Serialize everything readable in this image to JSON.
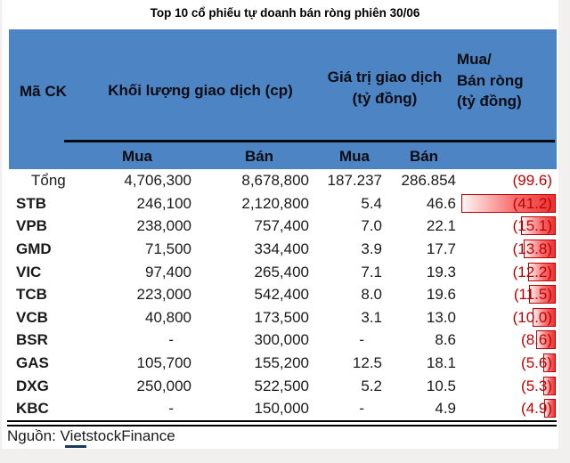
{
  "title": "Top 10 cổ phiếu tự doanh bán ròng phiên 30/06",
  "table": {
    "headers": {
      "ma_ck": "Mã CK",
      "khoi_luong": "Khối lượng giao dịch (cp)",
      "gia_tri": "Giá trị giao dịch\n(tỷ đồng)",
      "mua_ban_rong": "Mua/\nBán ròng\n(tỷ đồng)"
    },
    "sub_headers": [
      "Mua",
      "Bán",
      "Mua",
      "Bán"
    ]
  },
  "footer": {
    "source": "Nguồn: VietstockFinance"
  },
  "colors": {
    "header_bg": "#4d85c4",
    "negative_text": "#c00000",
    "bar_border": "#c00000",
    "bar_fill": "#e93232",
    "page_bg": "#f1f0ee",
    "text": "#1a1a1a"
  },
  "chart_data": {
    "type": "table",
    "title": "Top 10 cổ phiếu tự doanh bán ròng phiên 30/06",
    "columns": [
      "Mã CK",
      "Khối lượng giao dịch (cp) - Mua",
      "Khối lượng giao dịch (cp) - Bán",
      "Giá trị giao dịch (tỷ đồng) - Mua",
      "Giá trị giao dịch (tỷ đồng) - Bán",
      "Mua/Bán ròng (tỷ đồng)"
    ],
    "bar_scale_max": 41.2,
    "rows": [
      {
        "ma_ck": "Tổng",
        "kl_mua": "4,706,300",
        "kl_ban": "8,678,800",
        "gt_mua": "187.237",
        "gt_ban": "286.854",
        "net": "(99.6)",
        "net_value": -99.6,
        "is_total": true
      },
      {
        "ma_ck": "STB",
        "kl_mua": "246,100",
        "kl_ban": "2,120,800",
        "gt_mua": "5.4",
        "gt_ban": "46.6",
        "net": "(41.2)",
        "net_value": -41.2,
        "is_total": false
      },
      {
        "ma_ck": "VPB",
        "kl_mua": "238,000",
        "kl_ban": "757,400",
        "gt_mua": "7.0",
        "gt_ban": "22.1",
        "net": "(15.1)",
        "net_value": -15.1,
        "is_total": false
      },
      {
        "ma_ck": "GMD",
        "kl_mua": "71,500",
        "kl_ban": "334,400",
        "gt_mua": "3.9",
        "gt_ban": "17.7",
        "net": "(13.8)",
        "net_value": -13.8,
        "is_total": false
      },
      {
        "ma_ck": "VIC",
        "kl_mua": "97,400",
        "kl_ban": "265,400",
        "gt_mua": "7.1",
        "gt_ban": "19.3",
        "net": "(12.2)",
        "net_value": -12.2,
        "is_total": false
      },
      {
        "ma_ck": "TCB",
        "kl_mua": "223,000",
        "kl_ban": "542,400",
        "gt_mua": "8.0",
        "gt_ban": "19.6",
        "net": "(11.5)",
        "net_value": -11.5,
        "is_total": false
      },
      {
        "ma_ck": "VCB",
        "kl_mua": "40,800",
        "kl_ban": "173,500",
        "gt_mua": "3.1",
        "gt_ban": "13.0",
        "net": "(10.0)",
        "net_value": -10.0,
        "is_total": false
      },
      {
        "ma_ck": "BSR",
        "kl_mua": "-",
        "kl_ban": "300,000",
        "gt_mua": "-",
        "gt_ban": "8.6",
        "net": "(8.6)",
        "net_value": -8.6,
        "is_total": false
      },
      {
        "ma_ck": "GAS",
        "kl_mua": "105,700",
        "kl_ban": "155,200",
        "gt_mua": "12.5",
        "gt_ban": "18.1",
        "net": "(5.6)",
        "net_value": -5.6,
        "is_total": false
      },
      {
        "ma_ck": "DXG",
        "kl_mua": "250,000",
        "kl_ban": "522,500",
        "gt_mua": "5.2",
        "gt_ban": "10.5",
        "net": "(5.3)",
        "net_value": -5.3,
        "is_total": false
      },
      {
        "ma_ck": "KBC",
        "kl_mua": "-",
        "kl_ban": "150,000",
        "gt_mua": "-",
        "gt_ban": "4.9",
        "net": "(4.9)",
        "net_value": -4.9,
        "is_total": false
      }
    ],
    "source": "Nguồn: VietstockFinance"
  }
}
